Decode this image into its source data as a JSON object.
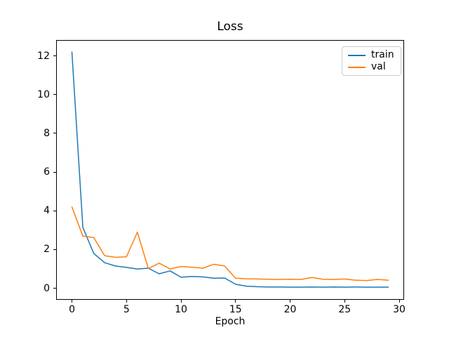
{
  "chart_data": {
    "type": "line",
    "title": "Loss",
    "xlabel": "Epoch",
    "ylabel": "",
    "x": [
      0,
      1,
      2,
      3,
      4,
      5,
      6,
      7,
      8,
      9,
      10,
      11,
      12,
      13,
      14,
      15,
      16,
      17,
      18,
      19,
      20,
      21,
      22,
      23,
      24,
      25,
      26,
      27,
      28,
      29
    ],
    "series": [
      {
        "name": "train",
        "color": "#1f77b4",
        "values": [
          12.2,
          3.15,
          1.8,
          1.32,
          1.15,
          1.08,
          1.0,
          1.04,
          0.75,
          0.9,
          0.57,
          0.61,
          0.59,
          0.52,
          0.53,
          0.21,
          0.11,
          0.08,
          0.07,
          0.07,
          0.06,
          0.06,
          0.07,
          0.06,
          0.07,
          0.06,
          0.07,
          0.06,
          0.06,
          0.06
        ]
      },
      {
        "name": "val",
        "color": "#ff7f0e",
        "values": [
          4.2,
          2.7,
          2.62,
          1.68,
          1.6,
          1.63,
          2.9,
          1.02,
          1.3,
          1.0,
          1.13,
          1.09,
          1.04,
          1.24,
          1.15,
          0.52,
          0.49,
          0.48,
          0.47,
          0.46,
          0.47,
          0.46,
          0.56,
          0.47,
          0.46,
          0.48,
          0.42,
          0.4,
          0.46,
          0.42
        ]
      }
    ],
    "xlim": [
      -1.45,
      30.45
    ],
    "ylim": [
      -0.6,
      12.8
    ],
    "x_ticks": [
      "0",
      "5",
      "10",
      "15",
      "20",
      "25",
      "30"
    ],
    "y_ticks": [
      "0",
      "2",
      "4",
      "6",
      "8",
      "10",
      "12"
    ],
    "grid": false,
    "legend_position": "upper right"
  },
  "colors": {
    "background": "#ffffff",
    "spine": "#000000",
    "tick": "#000000",
    "text": "#000000",
    "legend_border": "#cccccc"
  }
}
